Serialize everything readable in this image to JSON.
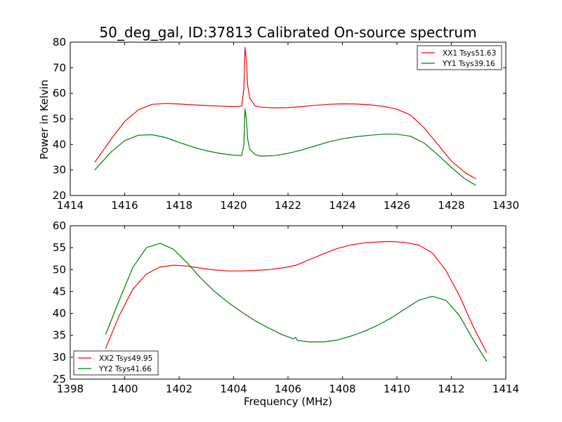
{
  "title": "50_deg_gal, ID:37813 Calibrated On-source spectrum",
  "shared_ylabel": "Power in Kelvin",
  "shared_xlabel": "Frequency (MHz)",
  "chart_data": [
    {
      "type": "line",
      "title": "50_deg_gal, ID:37813 Calibrated On-source spectrum",
      "xlabel": "",
      "ylabel": "Power in Kelvin",
      "xlim": [
        1414,
        1430
      ],
      "ylim": [
        20,
        80
      ],
      "xticks": [
        "1414",
        "1416",
        "1418",
        "1420",
        "1422",
        "1424",
        "1426",
        "1428",
        "1430"
      ],
      "yticks": [
        "20",
        "30",
        "40",
        "50",
        "60",
        "70",
        "80"
      ],
      "legend": "top-right",
      "series": [
        {
          "name": "XX1 Tsys51.63",
          "color": "#ff0000",
          "x": [
            1414.9,
            1415.5,
            1416.0,
            1416.5,
            1417.0,
            1417.5,
            1418.0,
            1418.5,
            1419.0,
            1419.5,
            1420.0,
            1420.3,
            1420.38,
            1420.42,
            1420.47,
            1420.52,
            1420.6,
            1420.8,
            1421.0,
            1421.5,
            1422.0,
            1422.5,
            1423.0,
            1423.5,
            1424.0,
            1424.5,
            1425.0,
            1425.5,
            1426.0,
            1426.5,
            1427.0,
            1427.5,
            1428.0,
            1428.5,
            1428.9
          ],
          "y": [
            33,
            42,
            49,
            53.5,
            55.7,
            56,
            55.8,
            55.5,
            55.2,
            55,
            54.8,
            55,
            62,
            78,
            73,
            63,
            58,
            55,
            54.6,
            54.3,
            54.4,
            54.8,
            55.3,
            55.7,
            55.9,
            55.8,
            55.5,
            54.9,
            53.8,
            51.5,
            46.5,
            40,
            33.5,
            29,
            26.5
          ]
        },
        {
          "name": "YY1 Tsys39.16",
          "color": "#008000",
          "x": [
            1414.9,
            1415.5,
            1416.0,
            1416.5,
            1417.0,
            1417.5,
            1418.0,
            1418.5,
            1419.0,
            1419.5,
            1420.0,
            1420.3,
            1420.38,
            1420.42,
            1420.47,
            1420.52,
            1420.6,
            1420.8,
            1421.0,
            1421.5,
            1422.0,
            1422.5,
            1423.0,
            1423.5,
            1424.0,
            1424.5,
            1425.0,
            1425.5,
            1426.0,
            1426.5,
            1427.0,
            1427.5,
            1428.0,
            1428.5,
            1428.9
          ],
          "y": [
            30,
            37,
            41.5,
            43.6,
            43.8,
            42.7,
            40.8,
            39,
            37.5,
            36.5,
            35.8,
            35.6,
            40,
            54,
            50,
            42,
            38,
            36,
            35.4,
            35.6,
            36.5,
            37.8,
            39.4,
            41,
            42.2,
            43,
            43.6,
            44,
            44,
            43.2,
            40.5,
            36,
            31,
            26.5,
            24
          ]
        }
      ]
    },
    {
      "type": "line",
      "title": "",
      "xlabel": "Frequency (MHz)",
      "ylabel": "",
      "xlim": [
        1398,
        1414
      ],
      "ylim": [
        25,
        60
      ],
      "xticks": [
        "1398",
        "1400",
        "1402",
        "1404",
        "1406",
        "1408",
        "1410",
        "1412",
        "1414"
      ],
      "yticks": [
        "25",
        "30",
        "35",
        "40",
        "45",
        "50",
        "55",
        "60"
      ],
      "legend": "bottom-left",
      "series": [
        {
          "name": "XX2 Tsys49.95",
          "color": "#ff0000",
          "x": [
            1399.3,
            1399.8,
            1400.3,
            1400.8,
            1401.3,
            1401.8,
            1402.3,
            1402.8,
            1403.3,
            1403.8,
            1404.3,
            1404.8,
            1405.3,
            1405.8,
            1406.3,
            1406.8,
            1407.3,
            1407.8,
            1408.3,
            1408.8,
            1409.3,
            1409.8,
            1410.3,
            1410.8,
            1411.3,
            1411.8,
            1412.3,
            1412.8,
            1413.3
          ],
          "y": [
            32,
            39.5,
            45.5,
            49,
            50.6,
            51,
            50.8,
            50.3,
            49.9,
            49.7,
            49.7,
            49.8,
            50,
            50.4,
            51,
            52.3,
            53.6,
            54.8,
            55.6,
            56.1,
            56.3,
            56.4,
            56.2,
            55.6,
            53.8,
            49.8,
            44,
            37,
            31
          ]
        },
        {
          "name": "YY2 Tsys41.66",
          "color": "#008000",
          "x": [
            1399.3,
            1399.8,
            1400.3,
            1400.8,
            1401.3,
            1401.8,
            1402.3,
            1402.8,
            1403.3,
            1403.8,
            1404.3,
            1404.8,
            1405.3,
            1405.8,
            1406.2,
            1406.28,
            1406.35,
            1406.8,
            1407.3,
            1407.8,
            1408.3,
            1408.8,
            1409.3,
            1409.8,
            1410.3,
            1410.8,
            1411.3,
            1411.8,
            1412.3,
            1412.8,
            1413.3
          ],
          "y": [
            35.2,
            43,
            50.5,
            55,
            56,
            54.6,
            51.5,
            48,
            45,
            42.5,
            40.3,
            38.3,
            36.6,
            35.1,
            34.2,
            34.5,
            33.8,
            33.5,
            33.5,
            33.9,
            34.8,
            35.9,
            37.3,
            39,
            41,
            43,
            43.9,
            43,
            39.5,
            34,
            29
          ]
        }
      ]
    }
  ]
}
